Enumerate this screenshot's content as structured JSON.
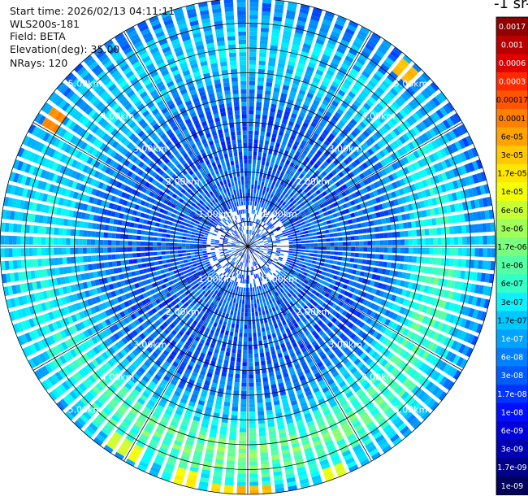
{
  "header": {
    "start_time": "Start time: 2026/02/13 04:11:11",
    "instrument": "WLS200s-181",
    "field": "Field: BETA",
    "elevation": "Elevation(deg): 35.00",
    "nrays": "NRays: 120"
  },
  "colorbar": {
    "title": "-1 sr-",
    "labels": [
      "0.0017",
      "0.001",
      "0.0006",
      "0.0003",
      "0.00017",
      "0.0001",
      "6e-05",
      "3e-05",
      "1.7e-05",
      "1e-05",
      "6e-06",
      "3e-06",
      "1.7e-06",
      "1e-06",
      "6e-07",
      "3e-07",
      "1.7e-07",
      "1e-07",
      "6e-08",
      "3e-08",
      "1.7e-08",
      "1e-08",
      "6e-09",
      "3e-09",
      "1.7e-09",
      "1e-09"
    ],
    "colors": [
      "#900000",
      "#b80000",
      "#e00000",
      "#ff2a00",
      "#ff5500",
      "#ff7f00",
      "#ffa300",
      "#ffc800",
      "#ffe600",
      "#f2ff08",
      "#c6ff34",
      "#9fff5b",
      "#7bff7f",
      "#56ffa3",
      "#33ffc8",
      "#0ff0ff",
      "#00c8ff",
      "#00a4ff",
      "#0080ff",
      "#005cff",
      "#0034ff",
      "#0010ff",
      "#0000d8",
      "#0000b0",
      "#000088",
      "#00005a"
    ]
  },
  "chart_data": {
    "type": "heatmap",
    "subtype": "ppi-polar",
    "field": "BETA",
    "elevation_deg": 35.0,
    "nrays": 120,
    "range_rings_km": [
      1.0,
      2.0,
      3.0,
      4.0,
      5.0
    ],
    "ring_labels": [
      "1.00km",
      "2.00km",
      "3.00km",
      "4.00km",
      "5.00km"
    ],
    "max_range_km": 5.0,
    "colorscale": "jet",
    "colorscale_log": true,
    "value_range": [
      1e-09,
      0.0017
    ],
    "features": [
      {
        "description": "background",
        "range_km": [
          0.0,
          5.0
        ],
        "typical_value": 3e-08
      },
      {
        "description": "enhanced ring",
        "range_km": [
          3.4,
          4.4
        ],
        "typical_value": 1.7e-07
      },
      {
        "description": "strong patch south",
        "range_km": [
          3.5,
          5.0
        ],
        "azimuth_deg": [
          140,
          230
        ],
        "typical_value": 3e-06
      },
      {
        "description": "hot spots rim",
        "range_km": [
          4.6,
          5.0
        ],
        "typical_value": 6e-05
      }
    ]
  }
}
